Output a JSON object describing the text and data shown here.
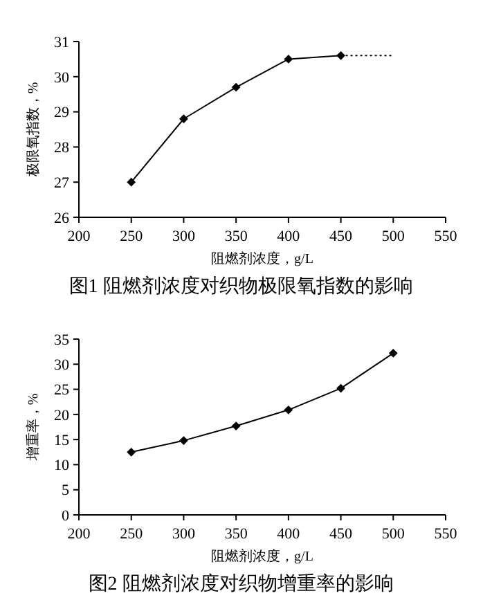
{
  "chart_data": [
    {
      "type": "line",
      "title": "图1 阻燃剂浓度对织物极限氧指数的影响",
      "xlabel": "阻燃剂浓度，g/L",
      "ylabel": "极限氧指数，%",
      "xlim": [
        200,
        550
      ],
      "xticks": [
        200,
        250,
        300,
        350,
        400,
        450,
        500,
        550
      ],
      "ylim": [
        26,
        31
      ],
      "yticks": [
        26,
        27,
        28,
        29,
        30,
        31
      ],
      "marker": "diamond",
      "series": [
        {
          "color": "#000000",
          "x": [
            250,
            300,
            350,
            400,
            450
          ],
          "values": [
            27,
            28.8,
            29.7,
            30.5,
            30.6
          ]
        },
        {
          "color": "#000000",
          "x": [
            450,
            500
          ],
          "values": [
            30.6,
            30.6
          ],
          "marker": "none",
          "line_style": "dotted"
        }
      ]
    },
    {
      "type": "line",
      "title": "图2 阻燃剂浓度对织物增重率的影响",
      "xlabel": "阻燃剂浓度，g/L",
      "ylabel": "增重率，%",
      "xlim": [
        200,
        550
      ],
      "xticks": [
        200,
        250,
        300,
        350,
        400,
        450,
        500,
        550
      ],
      "ylim": [
        0,
        35
      ],
      "yticks": [
        0,
        5,
        10,
        15,
        20,
        25,
        30,
        35
      ],
      "marker": "diamond",
      "series": [
        {
          "color": "#000000",
          "x": [
            250,
            300,
            350,
            400,
            450,
            500
          ],
          "values": [
            12.5,
            14.8,
            17.7,
            20.9,
            25.2,
            32.2
          ]
        }
      ]
    }
  ]
}
